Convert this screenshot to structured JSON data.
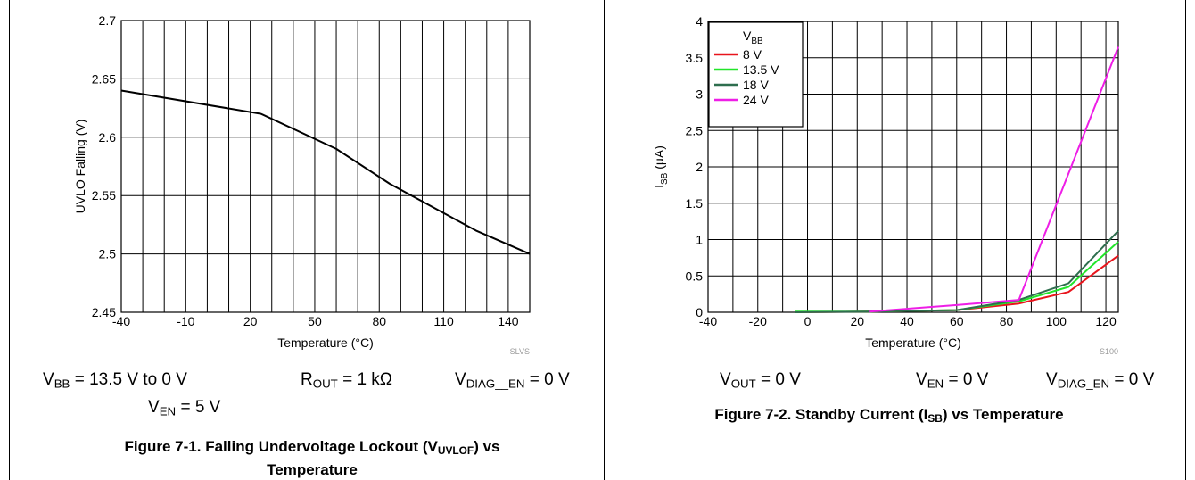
{
  "charts": [
    {
      "chart_data": {
        "type": "line",
        "title": "",
        "xlabel": "Temperature (°C)",
        "ylabel": "UVLO Falling (V)",
        "xlim": [
          -40,
          150
        ],
        "ylim": [
          2.45,
          2.7
        ],
        "x_ticks": [
          -40,
          -10,
          20,
          50,
          80,
          110,
          140
        ],
        "x_tick_labels": [
          "-40",
          "-10",
          "20",
          "50",
          "80",
          "110",
          "140"
        ],
        "y_ticks": [
          2.45,
          2.5,
          2.55,
          2.6,
          2.65,
          2.7
        ],
        "y_tick_labels": [
          "2.45",
          "2.5",
          "2.55",
          "2.6",
          "2.65",
          "2.7"
        ],
        "grid": true,
        "series": [
          {
            "name": "",
            "color": "#000000",
            "x": [
              -40,
              25,
              60,
              85,
              125,
              150
            ],
            "y": [
              2.64,
              2.62,
              2.59,
              2.56,
              2.52,
              2.5
            ]
          }
        ]
      },
      "stamp": "SLVS",
      "conditions": {
        "vbb": {
          "sym": "V",
          "sub": "BB",
          "rest": " = 13.5 V to 0 V"
        },
        "rout": {
          "sym": "R",
          "sub": "OUT",
          "rest": " = 1 kΩ"
        },
        "vdiag": {
          "sym": "V",
          "sub": "DIAG__EN",
          "rest": " = 0 V"
        },
        "ven": {
          "sym": "V",
          "sub": "EN",
          "rest": " = 5 V"
        }
      },
      "caption": {
        "pre": "Figure 7-1. Falling Undervoltage Lockout (V",
        "sub": "UVLOF",
        "post": ") vs",
        "line2": "Temperature"
      }
    },
    {
      "chart_data": {
        "type": "line",
        "title": "",
        "xlabel": "Temperature (°C)",
        "ylabel": {
          "sym": "I",
          "sub": "SB",
          "rest": " (µA)"
        },
        "xlim": [
          -40,
          125
        ],
        "ylim": [
          0,
          4
        ],
        "x_ticks": [
          -40,
          -20,
          0,
          20,
          40,
          60,
          80,
          100,
          120
        ],
        "x_tick_labels": [
          "-40",
          "-20",
          "0",
          "20",
          "40",
          "60",
          "80",
          "100",
          "120"
        ],
        "y_ticks": [
          0,
          0.5,
          1,
          1.5,
          2,
          2.5,
          3,
          3.5,
          4
        ],
        "y_tick_labels": [
          "0",
          "0.5",
          "1",
          "1.5",
          "2",
          "2.5",
          "3",
          "3.5",
          "4"
        ],
        "grid": true,
        "legend": {
          "title_sym": "V",
          "title_sub": "BB",
          "placement": "top-left"
        },
        "series": [
          {
            "name": "8 V",
            "color": "#e8141c",
            "x": [
              -5,
              25,
              60,
              85,
              105,
              125
            ],
            "y": [
              0,
              0.01,
              0.03,
              0.12,
              0.28,
              0.78
            ]
          },
          {
            "name": "13.5 V",
            "color": "#22e52a",
            "x": [
              -5,
              25,
              60,
              85,
              105,
              125
            ],
            "y": [
              0.01,
              0.01,
              0.03,
              0.15,
              0.35,
              0.97
            ]
          },
          {
            "name": "18 V",
            "color": "#2e6e4e",
            "x": [
              -5,
              25,
              60,
              85,
              105,
              125
            ],
            "y": [
              0,
              0.01,
              0.03,
              0.17,
              0.4,
              1.12
            ]
          },
          {
            "name": "24 V",
            "color": "#ee1ee6",
            "x": [
              25,
              60,
              85,
              125
            ],
            "y": [
              0.01,
              0.1,
              0.17,
              3.65
            ]
          }
        ]
      },
      "stamp": "S100",
      "conditions": {
        "vout": {
          "sym": "V",
          "sub": "OUT",
          "rest": " = 0 V"
        },
        "ven": {
          "sym": "V",
          "sub": "EN",
          "rest": " = 0 V"
        },
        "vdiag": {
          "sym": "V",
          "sub": "DIAG_EN",
          "rest": " = 0 V"
        }
      },
      "caption": {
        "pre": "Figure 7-2. Standby Current (I",
        "sub": "SB",
        "post": ") vs Temperature"
      }
    }
  ]
}
